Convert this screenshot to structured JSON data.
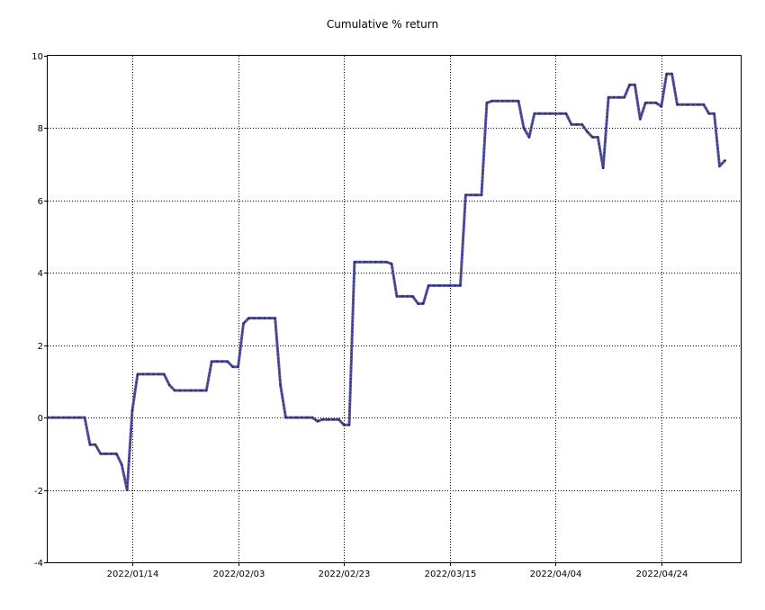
{
  "chart_data": {
    "type": "line",
    "title": "Cumulative % return",
    "xlabel": "",
    "ylabel": "",
    "ylim": [
      -4,
      10
    ],
    "xlim": [
      "2021-12-29",
      "2022-05-09"
    ],
    "grid": true,
    "legend": "none",
    "colors": {
      "line": "#5555aa",
      "line_dark": "#2b2b55",
      "grid": "#000000",
      "background": "#ffffff"
    },
    "y_ticks": [
      -4,
      -2,
      0,
      2,
      4,
      6,
      8,
      10
    ],
    "x_ticks": [
      {
        "date": "2022-01-14",
        "label": "2022/01/14"
      },
      {
        "date": "2022-02-03",
        "label": "2022/02/03"
      },
      {
        "date": "2022-02-23",
        "label": "2022/02/23"
      },
      {
        "date": "2022-03-15",
        "label": "2022/03/15"
      },
      {
        "date": "2022-04-04",
        "label": "2022/04/04"
      },
      {
        "date": "2022-04-24",
        "label": "2022/04/24"
      }
    ],
    "series": [
      {
        "points": [
          [
            "2021-12-29",
            0.0
          ],
          [
            "2021-12-30",
            0.0
          ],
          [
            "2021-12-31",
            0.0
          ],
          [
            "2022-01-01",
            0.0
          ],
          [
            "2022-01-02",
            0.0
          ],
          [
            "2022-01-03",
            0.0
          ],
          [
            "2022-01-04",
            0.0
          ],
          [
            "2022-01-05",
            0.0
          ],
          [
            "2022-01-06",
            -0.75
          ],
          [
            "2022-01-07",
            -0.75
          ],
          [
            "2022-01-08",
            -1.0
          ],
          [
            "2022-01-09",
            -1.0
          ],
          [
            "2022-01-10",
            -1.0
          ],
          [
            "2022-01-11",
            -1.0
          ],
          [
            "2022-01-12",
            -1.3
          ],
          [
            "2022-01-13",
            -2.0
          ],
          [
            "2022-01-14",
            0.2
          ],
          [
            "2022-01-15",
            1.2
          ],
          [
            "2022-01-16",
            1.2
          ],
          [
            "2022-01-17",
            1.2
          ],
          [
            "2022-01-18",
            1.2
          ],
          [
            "2022-01-19",
            1.2
          ],
          [
            "2022-01-20",
            1.2
          ],
          [
            "2022-01-21",
            0.9
          ],
          [
            "2022-01-22",
            0.75
          ],
          [
            "2022-01-23",
            0.75
          ],
          [
            "2022-01-24",
            0.75
          ],
          [
            "2022-01-25",
            0.75
          ],
          [
            "2022-01-26",
            0.75
          ],
          [
            "2022-01-27",
            0.75
          ],
          [
            "2022-01-28",
            0.75
          ],
          [
            "2022-01-29",
            1.55
          ],
          [
            "2022-01-30",
            1.55
          ],
          [
            "2022-01-31",
            1.55
          ],
          [
            "2022-02-01",
            1.55
          ],
          [
            "2022-02-02",
            1.4
          ],
          [
            "2022-02-03",
            1.4
          ],
          [
            "2022-02-04",
            2.6
          ],
          [
            "2022-02-05",
            2.75
          ],
          [
            "2022-02-06",
            2.75
          ],
          [
            "2022-02-07",
            2.75
          ],
          [
            "2022-02-08",
            2.75
          ],
          [
            "2022-02-09",
            2.75
          ],
          [
            "2022-02-10",
            2.75
          ],
          [
            "2022-02-11",
            0.9
          ],
          [
            "2022-02-12",
            0.0
          ],
          [
            "2022-02-13",
            0.0
          ],
          [
            "2022-02-14",
            0.0
          ],
          [
            "2022-02-15",
            0.0
          ],
          [
            "2022-02-16",
            0.0
          ],
          [
            "2022-02-17",
            0.0
          ],
          [
            "2022-02-18",
            -0.1
          ],
          [
            "2022-02-19",
            -0.05
          ],
          [
            "2022-02-20",
            -0.05
          ],
          [
            "2022-02-21",
            -0.05
          ],
          [
            "2022-02-22",
            -0.05
          ],
          [
            "2022-02-23",
            -0.2
          ],
          [
            "2022-02-24",
            -0.2
          ],
          [
            "2022-02-25",
            4.3
          ],
          [
            "2022-02-26",
            4.3
          ],
          [
            "2022-02-27",
            4.3
          ],
          [
            "2022-02-28",
            4.3
          ],
          [
            "2022-03-01",
            4.3
          ],
          [
            "2022-03-02",
            4.3
          ],
          [
            "2022-03-03",
            4.3
          ],
          [
            "2022-03-04",
            4.25
          ],
          [
            "2022-03-05",
            3.35
          ],
          [
            "2022-03-06",
            3.35
          ],
          [
            "2022-03-07",
            3.35
          ],
          [
            "2022-03-08",
            3.35
          ],
          [
            "2022-03-09",
            3.15
          ],
          [
            "2022-03-10",
            3.15
          ],
          [
            "2022-03-11",
            3.65
          ],
          [
            "2022-03-12",
            3.65
          ],
          [
            "2022-03-13",
            3.65
          ],
          [
            "2022-03-14",
            3.65
          ],
          [
            "2022-03-15",
            3.65
          ],
          [
            "2022-03-16",
            3.65
          ],
          [
            "2022-03-17",
            3.65
          ],
          [
            "2022-03-18",
            6.15
          ],
          [
            "2022-03-19",
            6.15
          ],
          [
            "2022-03-20",
            6.15
          ],
          [
            "2022-03-21",
            6.15
          ],
          [
            "2022-03-22",
            8.7
          ],
          [
            "2022-03-23",
            8.75
          ],
          [
            "2022-03-24",
            8.75
          ],
          [
            "2022-03-25",
            8.75
          ],
          [
            "2022-03-26",
            8.75
          ],
          [
            "2022-03-27",
            8.75
          ],
          [
            "2022-03-28",
            8.75
          ],
          [
            "2022-03-29",
            8.0
          ],
          [
            "2022-03-30",
            7.75
          ],
          [
            "2022-03-31",
            8.4
          ],
          [
            "2022-04-01",
            8.4
          ],
          [
            "2022-04-02",
            8.4
          ],
          [
            "2022-04-03",
            8.4
          ],
          [
            "2022-04-04",
            8.4
          ],
          [
            "2022-04-05",
            8.4
          ],
          [
            "2022-04-06",
            8.4
          ],
          [
            "2022-04-07",
            8.1
          ],
          [
            "2022-04-08",
            8.1
          ],
          [
            "2022-04-09",
            8.1
          ],
          [
            "2022-04-10",
            7.9
          ],
          [
            "2022-04-11",
            7.75
          ],
          [
            "2022-04-12",
            7.75
          ],
          [
            "2022-04-13",
            6.9
          ],
          [
            "2022-04-14",
            8.85
          ],
          [
            "2022-04-15",
            8.85
          ],
          [
            "2022-04-16",
            8.85
          ],
          [
            "2022-04-17",
            8.85
          ],
          [
            "2022-04-18",
            9.2
          ],
          [
            "2022-04-19",
            9.2
          ],
          [
            "2022-04-20",
            8.25
          ],
          [
            "2022-04-21",
            8.7
          ],
          [
            "2022-04-22",
            8.7
          ],
          [
            "2022-04-23",
            8.7
          ],
          [
            "2022-04-24",
            8.6
          ],
          [
            "2022-04-25",
            9.5
          ],
          [
            "2022-04-26",
            9.5
          ],
          [
            "2022-04-27",
            8.65
          ],
          [
            "2022-04-28",
            8.65
          ],
          [
            "2022-04-29",
            8.65
          ],
          [
            "2022-04-30",
            8.65
          ],
          [
            "2022-05-01",
            8.65
          ],
          [
            "2022-05-02",
            8.65
          ],
          [
            "2022-05-03",
            8.4
          ],
          [
            "2022-05-04",
            8.4
          ],
          [
            "2022-05-05",
            6.95
          ],
          [
            "2022-05-06",
            7.1
          ]
        ]
      }
    ]
  }
}
